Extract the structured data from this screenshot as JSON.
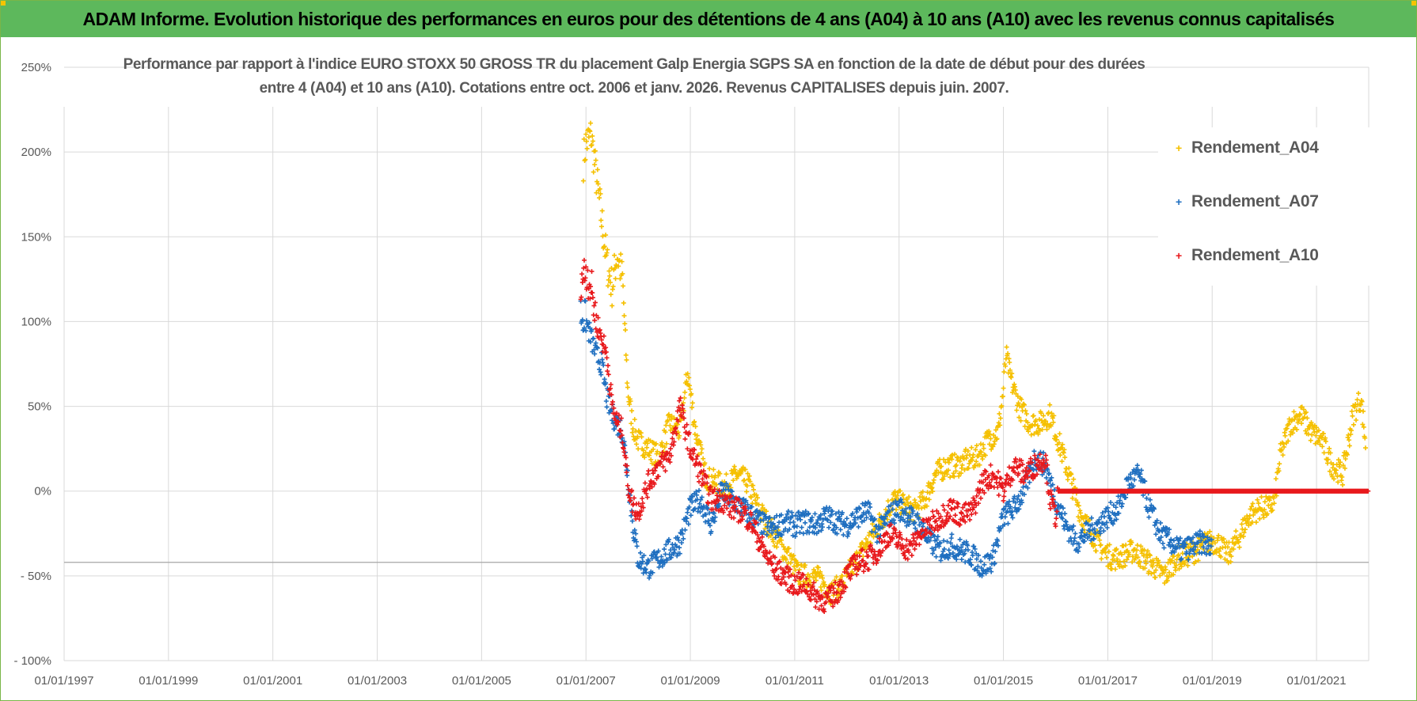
{
  "header": {
    "banner_text": "ADAM Informe. Evolution historique des performances en euros pour des détentions de 4 ans (A04) à 10 ans (A10) avec les revenus connus capitalisés"
  },
  "colors": {
    "banner_bg": "#5db85c",
    "corner_accent": "#f5c400",
    "grid": "#d9d9d9",
    "axis_text": "#595959",
    "a04": "#f5c000",
    "a07": "#1f6fc0",
    "a10": "#e8191c"
  },
  "chart_data": {
    "type": "scatter",
    "title_line1": "Performance par rapport à l'indice EURO STOXX 50 GROSS TR  du placement Galp Energia SGPS SA en fonction de la date de début pour des durées",
    "title_line2": "entre 4 (A04) et 10 ans (A10).  Cotations entre oct. 2006 et janv. 2026.  Revenus CAPITALISES  depuis juin. 2007.",
    "xlabel": "",
    "ylabel": "",
    "x_range": [
      1997.0,
      2022.0
    ],
    "ylim": [
      -100,
      250
    ],
    "y_ticks": [
      250,
      200,
      150,
      100,
      50,
      0,
      -50,
      -100
    ],
    "y_tick_labels": [
      "250%",
      "200%",
      "150%",
      "100%",
      "50%",
      "0%",
      "- 50%",
      "- 100%"
    ],
    "x_ticks": [
      1997,
      1999,
      2001,
      2003,
      2005,
      2007,
      2009,
      2011,
      2013,
      2015,
      2017,
      2019,
      2021
    ],
    "x_tick_labels": [
      "01/01/1997",
      "01/01/1999",
      "01/01/2001",
      "01/01/2003",
      "01/01/2005",
      "01/01/2007",
      "01/01/2009",
      "01/01/2011",
      "01/01/2013",
      "01/01/2015",
      "01/01/2017",
      "01/01/2019",
      "01/01/2021"
    ],
    "reference_line_y": -42,
    "legend_position": "top-right",
    "series": [
      {
        "name": "Rendement_A04",
        "color_key": "a04",
        "points": [
          [
            2006.95,
            195
          ],
          [
            2007.0,
            205
          ],
          [
            2007.1,
            210
          ],
          [
            2007.2,
            185
          ],
          [
            2007.3,
            160
          ],
          [
            2007.4,
            135
          ],
          [
            2007.5,
            120
          ],
          [
            2007.6,
            140
          ],
          [
            2007.7,
            125
          ],
          [
            2007.8,
            60
          ],
          [
            2007.9,
            38
          ],
          [
            2008.0,
            30
          ],
          [
            2008.2,
            25
          ],
          [
            2008.4,
            20
          ],
          [
            2008.6,
            40
          ],
          [
            2008.8,
            35
          ],
          [
            2008.95,
            70
          ],
          [
            2009.1,
            35
          ],
          [
            2009.3,
            8
          ],
          [
            2009.5,
            5
          ],
          [
            2009.7,
            3
          ],
          [
            2009.9,
            10
          ],
          [
            2010.1,
            5
          ],
          [
            2010.3,
            -10
          ],
          [
            2010.5,
            -20
          ],
          [
            2010.7,
            -30
          ],
          [
            2010.9,
            -40
          ],
          [
            2011.1,
            -50
          ],
          [
            2011.3,
            -50
          ],
          [
            2011.5,
            -52
          ],
          [
            2011.7,
            -60
          ],
          [
            2011.9,
            -55
          ],
          [
            2012.1,
            -45
          ],
          [
            2012.3,
            -35
          ],
          [
            2012.5,
            -25
          ],
          [
            2012.7,
            -15
          ],
          [
            2012.9,
            -5
          ],
          [
            2013.1,
            -8
          ],
          [
            2013.3,
            -12
          ],
          [
            2013.5,
            -5
          ],
          [
            2013.7,
            10
          ],
          [
            2013.9,
            15
          ],
          [
            2014.1,
            15
          ],
          [
            2014.3,
            18
          ],
          [
            2014.5,
            20
          ],
          [
            2014.7,
            30
          ],
          [
            2014.9,
            35
          ],
          [
            2015.0,
            60
          ],
          [
            2015.05,
            80
          ],
          [
            2015.15,
            65
          ],
          [
            2015.3,
            50
          ],
          [
            2015.5,
            40
          ],
          [
            2015.7,
            40
          ],
          [
            2015.9,
            45
          ],
          [
            2016.1,
            25
          ],
          [
            2016.3,
            5
          ],
          [
            2016.5,
            -15
          ],
          [
            2016.7,
            -25
          ],
          [
            2016.9,
            -35
          ],
          [
            2017.1,
            -40
          ],
          [
            2017.3,
            -38
          ],
          [
            2017.5,
            -35
          ],
          [
            2017.7,
            -40
          ],
          [
            2017.9,
            -45
          ],
          [
            2018.1,
            -50
          ],
          [
            2018.3,
            -40
          ],
          [
            2018.5,
            -38
          ],
          [
            2018.7,
            -35
          ],
          [
            2018.9,
            -30
          ],
          [
            2019.1,
            -30
          ],
          [
            2019.3,
            -38
          ],
          [
            2019.5,
            -28
          ],
          [
            2019.7,
            -15
          ],
          [
            2019.9,
            -10
          ],
          [
            2020.1,
            -10
          ],
          [
            2020.2,
            -5
          ],
          [
            2020.3,
            20
          ],
          [
            2020.5,
            40
          ],
          [
            2020.7,
            45
          ],
          [
            2020.9,
            35
          ],
          [
            2021.1,
            30
          ],
          [
            2021.3,
            15
          ],
          [
            2021.5,
            10
          ],
          [
            2021.7,
            45
          ],
          [
            2021.85,
            55
          ],
          [
            2021.95,
            25
          ]
        ]
      },
      {
        "name": "Rendement_A07",
        "color_key": "a07",
        "points": [
          [
            2006.9,
            105
          ],
          [
            2007.0,
            100
          ],
          [
            2007.1,
            90
          ],
          [
            2007.2,
            80
          ],
          [
            2007.3,
            75
          ],
          [
            2007.4,
            55
          ],
          [
            2007.5,
            45
          ],
          [
            2007.6,
            40
          ],
          [
            2007.7,
            35
          ],
          [
            2007.8,
            10
          ],
          [
            2007.9,
            -20
          ],
          [
            2008.0,
            -40
          ],
          [
            2008.2,
            -45
          ],
          [
            2008.4,
            -40
          ],
          [
            2008.6,
            -35
          ],
          [
            2008.8,
            -30
          ],
          [
            2009.0,
            -10
          ],
          [
            2009.2,
            -5
          ],
          [
            2009.4,
            -20
          ],
          [
            2009.6,
            0
          ],
          [
            2009.8,
            -5
          ],
          [
            2010.0,
            -10
          ],
          [
            2010.2,
            -15
          ],
          [
            2010.4,
            -20
          ],
          [
            2010.6,
            -22
          ],
          [
            2010.8,
            -18
          ],
          [
            2011.0,
            -20
          ],
          [
            2011.2,
            -18
          ],
          [
            2011.4,
            -20
          ],
          [
            2011.6,
            -15
          ],
          [
            2011.8,
            -18
          ],
          [
            2012.0,
            -20
          ],
          [
            2012.2,
            -15
          ],
          [
            2012.4,
            -12
          ],
          [
            2012.6,
            -25
          ],
          [
            2012.8,
            -15
          ],
          [
            2013.0,
            -10
          ],
          [
            2013.2,
            -15
          ],
          [
            2013.4,
            -20
          ],
          [
            2013.6,
            -30
          ],
          [
            2013.8,
            -35
          ],
          [
            2014.0,
            -32
          ],
          [
            2014.2,
            -35
          ],
          [
            2014.4,
            -38
          ],
          [
            2014.6,
            -45
          ],
          [
            2014.8,
            -40
          ],
          [
            2015.0,
            -15
          ],
          [
            2015.2,
            -10
          ],
          [
            2015.4,
            0
          ],
          [
            2015.6,
            20
          ],
          [
            2015.8,
            15
          ],
          [
            2016.0,
            -5
          ],
          [
            2016.2,
            -20
          ],
          [
            2016.4,
            -30
          ],
          [
            2016.6,
            -25
          ],
          [
            2016.8,
            -20
          ],
          [
            2017.0,
            -15
          ],
          [
            2017.2,
            -10
          ],
          [
            2017.4,
            5
          ],
          [
            2017.6,
            10
          ],
          [
            2017.8,
            -10
          ],
          [
            2018.0,
            -25
          ],
          [
            2018.2,
            -30
          ],
          [
            2018.4,
            -35
          ],
          [
            2018.6,
            -33
          ],
          [
            2018.8,
            -30
          ],
          [
            2019.0,
            -35
          ]
        ]
      },
      {
        "name": "Rendement_A10",
        "color_key": "a10",
        "points": [
          [
            2006.9,
            125
          ],
          [
            2007.0,
            130
          ],
          [
            2007.1,
            120
          ],
          [
            2007.2,
            100
          ],
          [
            2007.3,
            90
          ],
          [
            2007.4,
            80
          ],
          [
            2007.5,
            50
          ],
          [
            2007.6,
            40
          ],
          [
            2007.7,
            35
          ],
          [
            2007.8,
            5
          ],
          [
            2007.9,
            -8
          ],
          [
            2008.0,
            -12
          ],
          [
            2008.2,
            5
          ],
          [
            2008.4,
            15
          ],
          [
            2008.6,
            20
          ],
          [
            2008.8,
            50
          ],
          [
            2009.0,
            25
          ],
          [
            2009.2,
            10
          ],
          [
            2009.4,
            -5
          ],
          [
            2009.6,
            -5
          ],
          [
            2009.8,
            -10
          ],
          [
            2010.0,
            -12
          ],
          [
            2010.2,
            -20
          ],
          [
            2010.4,
            -35
          ],
          [
            2010.6,
            -45
          ],
          [
            2010.8,
            -50
          ],
          [
            2011.0,
            -55
          ],
          [
            2011.2,
            -55
          ],
          [
            2011.4,
            -62
          ],
          [
            2011.6,
            -65
          ],
          [
            2011.8,
            -60
          ],
          [
            2012.0,
            -50
          ],
          [
            2012.2,
            -42
          ],
          [
            2012.4,
            -40
          ],
          [
            2012.6,
            -35
          ],
          [
            2012.8,
            -25
          ],
          [
            2013.0,
            -30
          ],
          [
            2013.2,
            -35
          ],
          [
            2013.4,
            -25
          ],
          [
            2013.6,
            -20
          ],
          [
            2013.8,
            -15
          ],
          [
            2014.0,
            -10
          ],
          [
            2014.2,
            -15
          ],
          [
            2014.4,
            -12
          ],
          [
            2014.6,
            5
          ],
          [
            2014.8,
            10
          ],
          [
            2015.0,
            0
          ],
          [
            2015.2,
            15
          ],
          [
            2015.4,
            10
          ],
          [
            2015.6,
            15
          ],
          [
            2015.8,
            20
          ],
          [
            2015.9,
            -5
          ],
          [
            2016.0,
            -15
          ],
          [
            2016.05,
            0
          ],
          [
            2022.0,
            0
          ]
        ]
      }
    ]
  }
}
